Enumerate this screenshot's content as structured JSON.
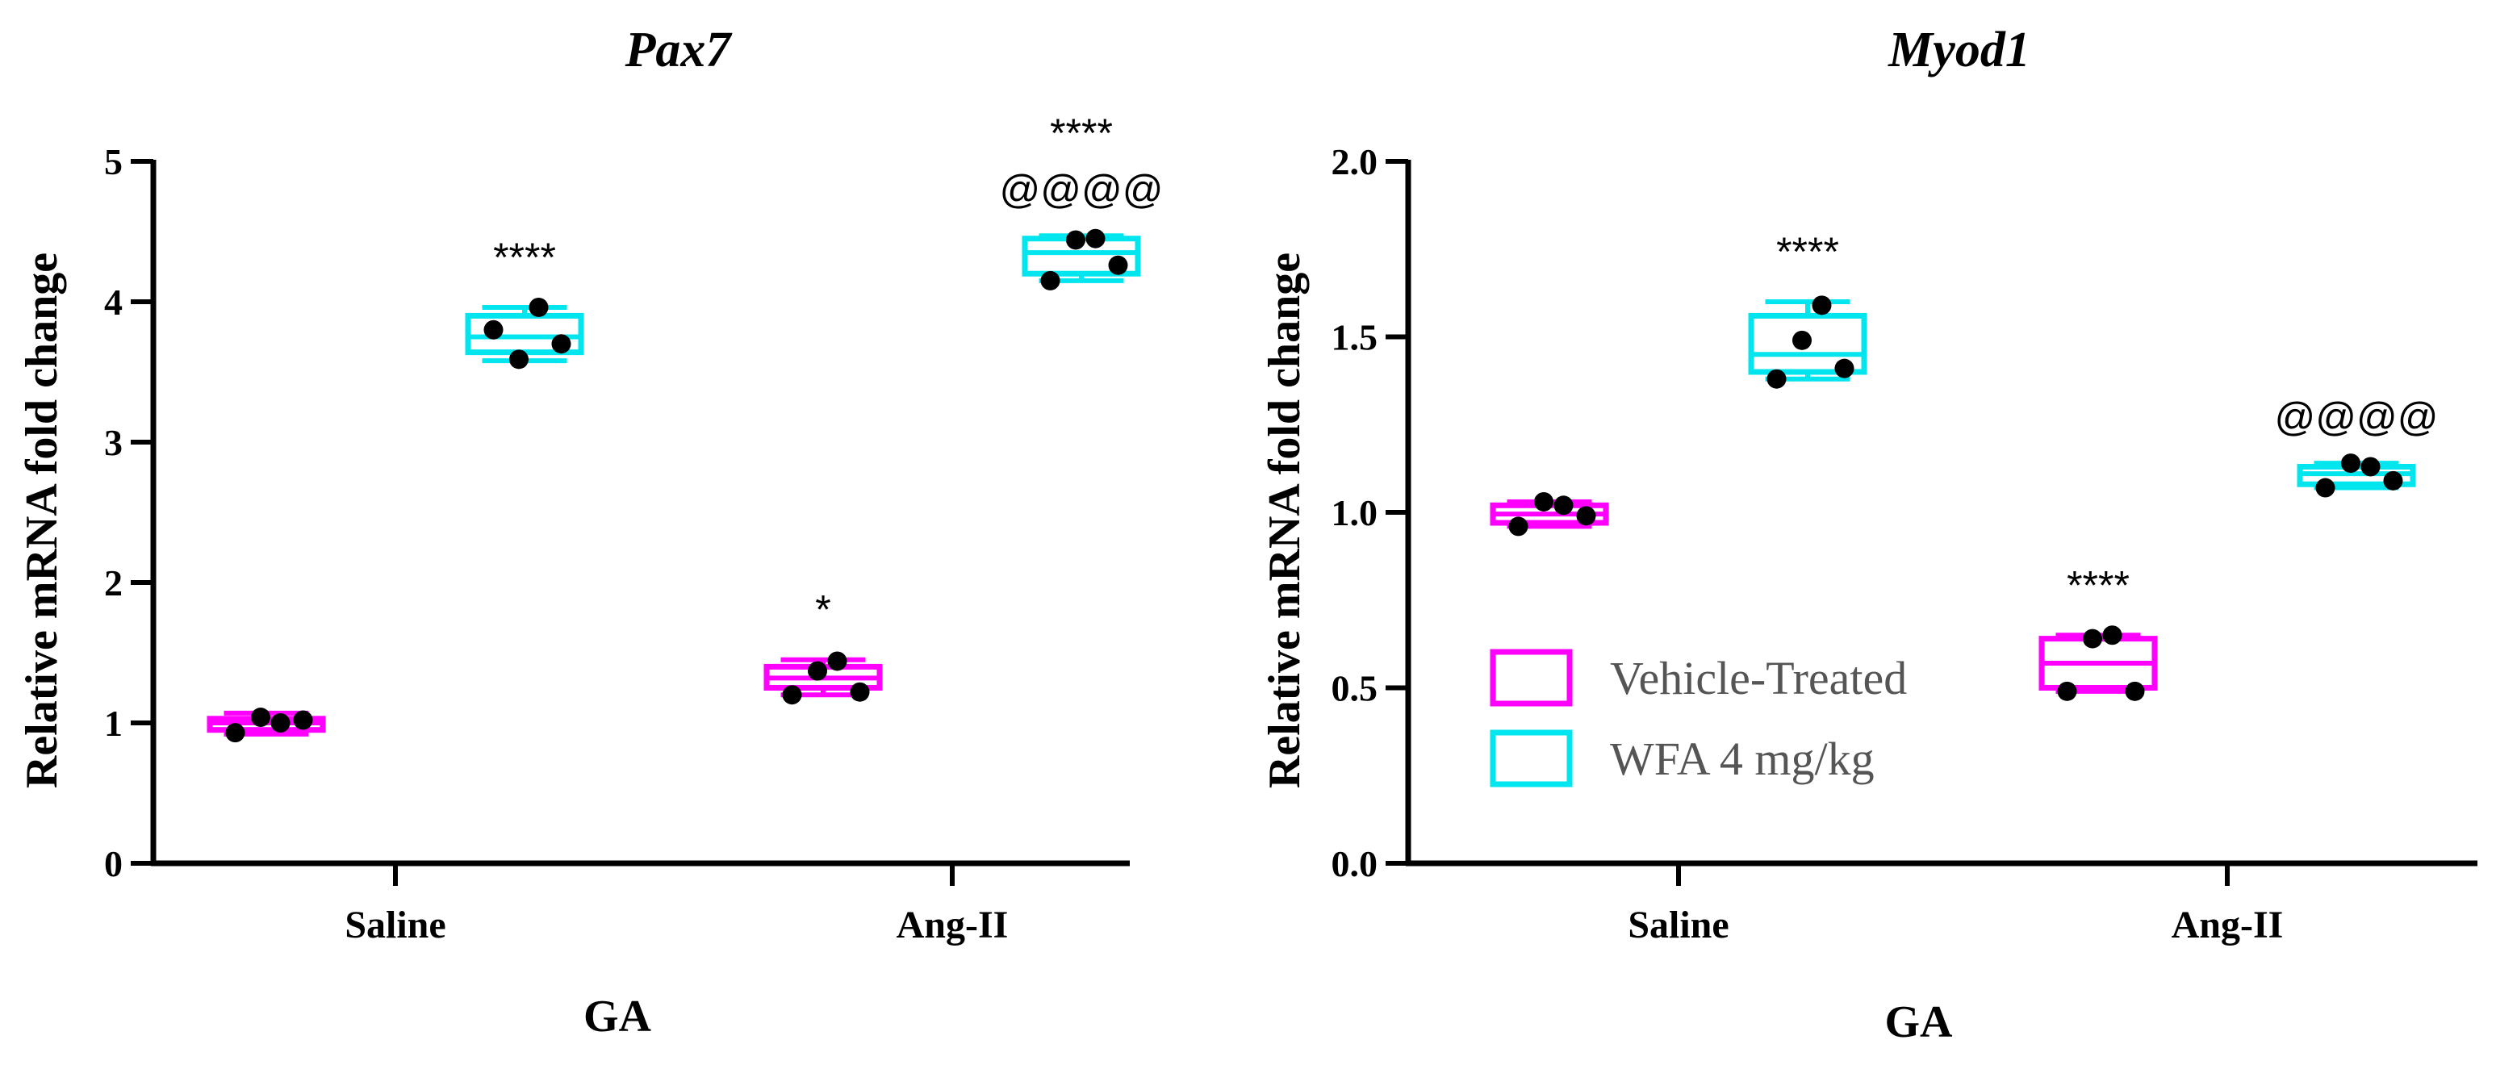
{
  "chart_data": [
    {
      "type": "box",
      "title": "Pax7",
      "xlabel": "GA",
      "ylabel": "Relative mRNA fold change",
      "ylim": [
        0,
        5
      ],
      "yticks": [
        "0",
        "1",
        "2",
        "3",
        "4",
        "5"
      ],
      "categories": [
        "Saline",
        "Ang-II"
      ],
      "series": [
        {
          "name": "Vehicle-Treated",
          "color": "#ff00ff",
          "groups": [
            {
              "category": "Saline",
              "q1": 0.95,
              "median": 1.0,
              "q3": 1.03,
              "min": 0.92,
              "max": 1.07,
              "points": [
                0.93,
                1.04,
                1.0,
                1.02
              ]
            },
            {
              "category": "Ang-II",
              "q1": 1.25,
              "median": 1.32,
              "q3": 1.4,
              "min": 1.2,
              "max": 1.45,
              "points": [
                1.2,
                1.37,
                1.44,
                1.22
              ],
              "annotation": "*"
            }
          ]
        },
        {
          "name": "WFA 4 mg/kg",
          "color": "#00e5ee",
          "groups": [
            {
              "category": "Saline",
              "q1": 3.64,
              "median": 3.75,
              "q3": 3.9,
              "min": 3.58,
              "max": 3.96,
              "points": [
                3.8,
                3.59,
                3.96,
                3.7
              ],
              "annotation": "****"
            },
            {
              "category": "Ang-II",
              "q1": 4.2,
              "median": 4.35,
              "q3": 4.45,
              "min": 4.15,
              "max": 4.47,
              "points": [
                4.15,
                4.44,
                4.45,
                4.26
              ],
              "annotation": "****",
              "annotation2": "@@@@"
            }
          ]
        }
      ]
    },
    {
      "type": "box",
      "title": "Myod1",
      "xlabel": "GA",
      "ylabel": "Relative mRNA fold change",
      "ylim": [
        0,
        2
      ],
      "yticks": [
        "0.0",
        "0.5",
        "1.0",
        "1.5",
        "2.0"
      ],
      "categories": [
        "Saline",
        "Ang-II"
      ],
      "legend": {
        "position": "center-left",
        "entries": [
          "Vehicle-Treated",
          "WFA 4 mg/kg"
        ]
      },
      "series": [
        {
          "name": "Vehicle-Treated",
          "color": "#ff00ff",
          "groups": [
            {
              "category": "Saline",
              "q1": 0.97,
              "median": 0.995,
              "q3": 1.02,
              "min": 0.96,
              "max": 1.03,
              "points": [
                0.96,
                1.03,
                1.02,
                0.99
              ]
            },
            {
              "category": "Ang-II",
              "q1": 0.5,
              "median": 0.57,
              "q3": 0.64,
              "min": 0.49,
              "max": 0.65,
              "points": [
                0.49,
                0.64,
                0.65,
                0.49
              ],
              "annotation": "****"
            }
          ]
        },
        {
          "name": "WFA 4 mg/kg",
          "color": "#00e5ee",
          "groups": [
            {
              "category": "Saline",
              "q1": 1.4,
              "median": 1.45,
              "q3": 1.56,
              "min": 1.38,
              "max": 1.6,
              "points": [
                1.38,
                1.49,
                1.59,
                1.41
              ],
              "annotation": "****"
            },
            {
              "category": "Ang-II",
              "q1": 1.08,
              "median": 1.11,
              "q3": 1.13,
              "min": 1.07,
              "max": 1.14,
              "points": [
                1.07,
                1.14,
                1.13,
                1.09
              ],
              "annotation": "@@@@"
            }
          ]
        }
      ]
    }
  ]
}
